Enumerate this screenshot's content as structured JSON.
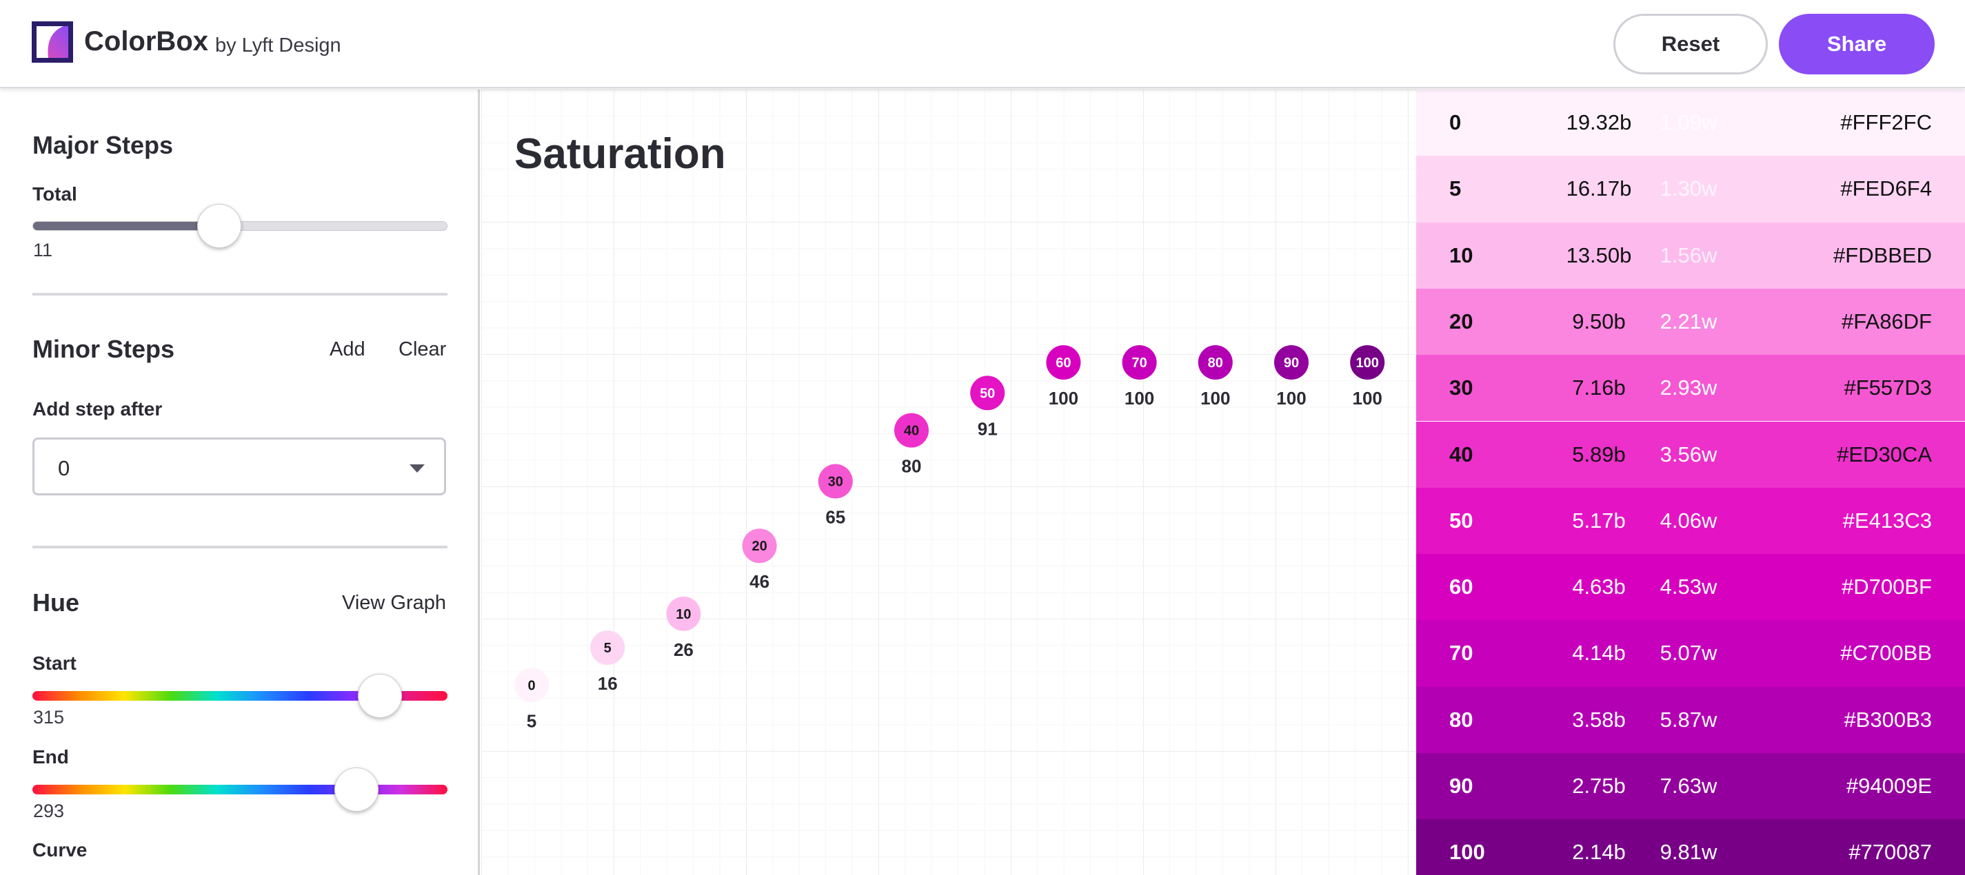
{
  "header": {
    "app_title": "ColorBox",
    "byline": "by Lyft Design",
    "reset_label": "Reset",
    "share_label": "Share"
  },
  "sidebar": {
    "major_steps": {
      "title": "Major Steps",
      "total_label": "Total",
      "total_value": "11",
      "slider_fraction": 0.45
    },
    "minor_steps": {
      "title": "Minor Steps",
      "add_label": "Add",
      "clear_label": "Clear",
      "add_after_label": "Add step after",
      "add_after_value": "0"
    },
    "hue": {
      "title": "Hue",
      "view_graph_label": "View Graph",
      "start_label": "Start",
      "start_value": "315",
      "start_fraction": 0.837,
      "end_label": "End",
      "end_value": "293",
      "end_fraction": 0.78,
      "curve_label": "Curve"
    }
  },
  "graph": {
    "title": "Saturation"
  },
  "chart_data": {
    "type": "scatter",
    "title": "Saturation",
    "x_labels": [
      "0",
      "5",
      "10",
      "20",
      "30",
      "40",
      "50",
      "60",
      "70",
      "80",
      "90",
      "100"
    ],
    "values": [
      5,
      16,
      26,
      46,
      65,
      80,
      91,
      100,
      100,
      100,
      100,
      100
    ],
    "point_colors": [
      "#FFF2FC",
      "#FED6F4",
      "#FDBBED",
      "#FA86DF",
      "#F557D3",
      "#ED30CA",
      "#E413C3",
      "#D700BF",
      "#C700BB",
      "#B300B3",
      "#94009E",
      "#770087"
    ],
    "ylim": [
      0,
      100
    ]
  },
  "palette": {
    "swatches": [
      {
        "step": "0",
        "b": "19.32b",
        "w": "1.09w",
        "hex": "#FFF2FC",
        "color": "#FFF2FC",
        "text": "#111111"
      },
      {
        "step": "5",
        "b": "16.17b",
        "w": "1.30w",
        "hex": "#FED6F4",
        "color": "#FED6F4",
        "text": "#111111"
      },
      {
        "step": "10",
        "b": "13.50b",
        "w": "1.56w",
        "hex": "#FDBBED",
        "color": "#FDBBED",
        "text": "#111111"
      },
      {
        "step": "20",
        "b": "9.50b",
        "w": "2.21w",
        "hex": "#FA86DF",
        "color": "#FA86DF",
        "text": "#111111"
      },
      {
        "step": "30",
        "b": "7.16b",
        "w": "2.93w",
        "hex": "#F557D3",
        "color": "#F557D3",
        "text": "#111111"
      },
      {
        "step": "40",
        "b": "5.89b",
        "w": "3.56w",
        "hex": "#ED30CA",
        "color": "#ED30CA",
        "text": "#111111"
      },
      {
        "step": "50",
        "b": "5.17b",
        "w": "4.06w",
        "hex": "#E413C3",
        "color": "#E413C3",
        "text": "#ffffff"
      },
      {
        "step": "60",
        "b": "4.63b",
        "w": "4.53w",
        "hex": "#D700BF",
        "color": "#D700BF",
        "text": "#ffffff"
      },
      {
        "step": "70",
        "b": "4.14b",
        "w": "5.07w",
        "hex": "#C700BB",
        "color": "#C700BB",
        "text": "#ffffff"
      },
      {
        "step": "80",
        "b": "3.58b",
        "w": "5.87w",
        "hex": "#B300B3",
        "color": "#B300B3",
        "text": "#ffffff"
      },
      {
        "step": "90",
        "b": "2.75b",
        "w": "7.63w",
        "hex": "#94009E",
        "color": "#94009E",
        "text": "#ffffff"
      },
      {
        "step": "100",
        "b": "2.14b",
        "w": "9.81w",
        "hex": "#770087",
        "color": "#770087",
        "text": "#ffffff"
      }
    ]
  }
}
